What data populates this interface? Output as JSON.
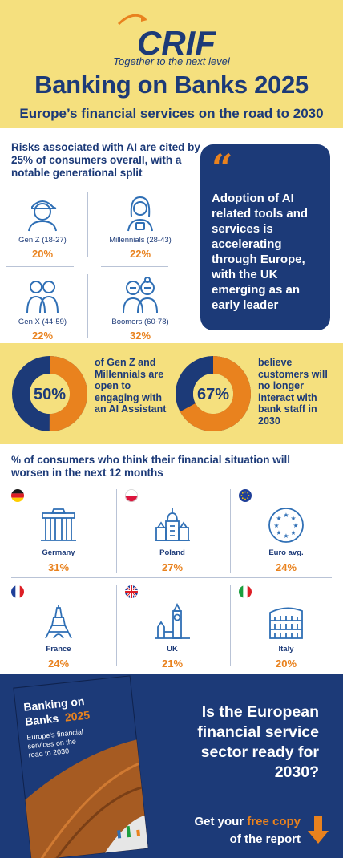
{
  "header": {
    "logo_text": "CRIF",
    "tagline": "Together to the next level",
    "title": "Banking on Banks 2025",
    "subtitle": "Europe’s financial services on the road to 2030"
  },
  "ai_risk": {
    "heading": "Risks associated with AI are cited by 25% of consumers overall, with a notable generational split",
    "generations": [
      {
        "label": "Gen Z (18-27)",
        "value": "20%",
        "icon": "gen-z-person-icon"
      },
      {
        "label": "Millennials (28-43)",
        "value": "22%",
        "icon": "millennial-person-icon"
      },
      {
        "label": "Gen X (44-59)",
        "value": "22%",
        "icon": "gen-x-couple-icon"
      },
      {
        "label": "Boomers (60-78)",
        "value": "32%",
        "icon": "boomers-couple-icon"
      }
    ],
    "quote": "Adoption of AI related tools and services is accelerating through Europe, with the UK emerging as an early leader"
  },
  "donuts": [
    {
      "value": 50,
      "label": "50%",
      "text": "of Gen Z and Millennials are open to engaging with an AI Assistant"
    },
    {
      "value": 67,
      "label": "67%",
      "text": "believe customers will no longer interact with bank staff in 2030"
    }
  ],
  "countries": {
    "heading": "% of consumers who think their financial situation will worsen in the next 12 months",
    "items": [
      {
        "name": "Germany",
        "value": "31%",
        "flag": "germany-flag",
        "icon": "brandenburg-gate-icon"
      },
      {
        "name": "Poland",
        "value": "27%",
        "flag": "poland-flag",
        "icon": "palace-of-culture-icon"
      },
      {
        "name": "Euro avg.",
        "value": "24%",
        "flag": "eu-flag",
        "icon": "eu-stars-icon"
      },
      {
        "name": "France",
        "value": "24%",
        "flag": "france-flag",
        "icon": "eiffel-tower-icon"
      },
      {
        "name": "UK",
        "value": "21%",
        "flag": "uk-flag",
        "icon": "big-ben-icon"
      },
      {
        "name": "Italy",
        "value": "20%",
        "flag": "italy-flag",
        "icon": "colosseum-icon"
      }
    ]
  },
  "footer": {
    "cover_title_line1": "Banking on",
    "cover_title_line2": "Banks",
    "cover_title_year": "2025",
    "cover_subtitle_lines": [
      "Europe's financial",
      "services on the",
      "road to 2030"
    ],
    "question": "Is the European financial service sector ready for 2030?",
    "cta_prefix": "Get your",
    "cta_highlight": "free copy",
    "cta_suffix": "of the report"
  },
  "colors": {
    "navy": "#1c3a78",
    "orange": "#e9821e",
    "yellow": "#f5e07e"
  }
}
